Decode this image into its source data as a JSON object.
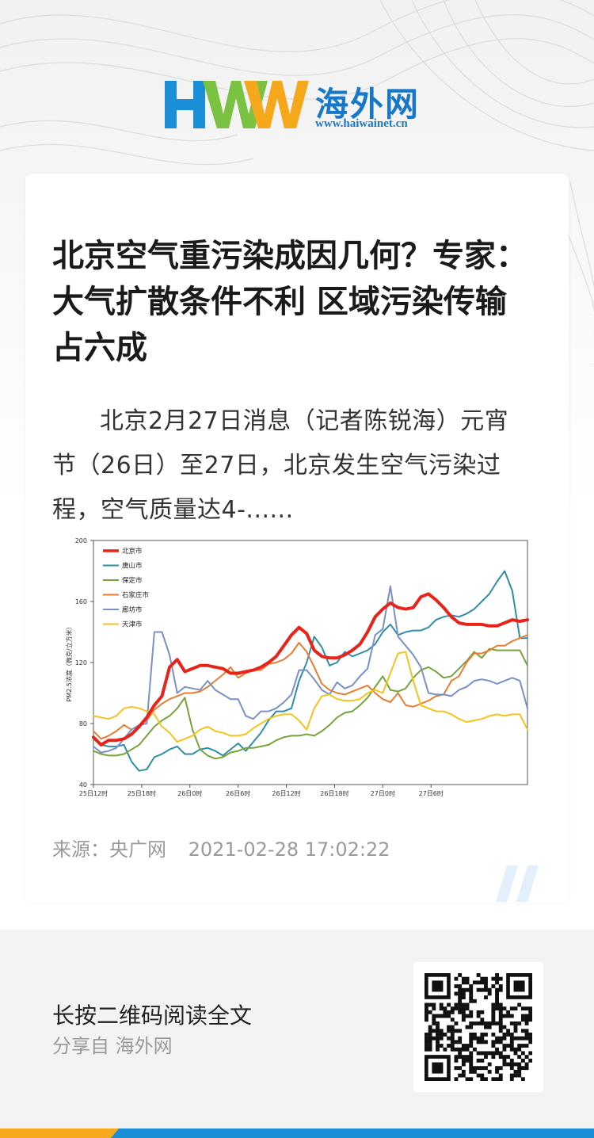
{
  "brand": {
    "logo_letters": "HWW",
    "name_cn": "海外网",
    "url": "www.haiwainet.cn",
    "colors": {
      "h": "#1a8fd8",
      "w1": "#7cc242",
      "w2": "#f5a81c",
      "cn": "#1878c8"
    }
  },
  "article": {
    "title": "北京空气重污染成因几何？专家：大气扩散条件不利 区域污染传输占六成",
    "summary": "北京2月27日消息（记者陈锐海）元宵节（26日）至27日，北京发生空气污染过程，空气质量达4-......",
    "source_label": "来源：央广网",
    "datetime": "2021-02-28 17:02:22"
  },
  "chart_data": {
    "type": "line",
    "ylabel": "PM2.5浓度（微克/立方米）",
    "ylim": [
      40,
      200
    ],
    "yticks": [
      40,
      80,
      120,
      160,
      200
    ],
    "xticks": [
      "25日12时",
      "25日18时",
      "26日0时",
      "26日6时",
      "26日12时",
      "26日18时",
      "27日0时",
      "27日6时"
    ],
    "hours_span": [
      0,
      27
    ],
    "legend_position": "top-left",
    "series": [
      {
        "name": "北京市",
        "color": "#e8231a",
        "width": 4,
        "values": [
          71,
          66,
          69,
          69,
          70,
          73,
          78,
          84,
          92,
          98,
          117,
          122,
          114,
          116,
          118,
          118,
          117,
          116,
          113,
          113,
          114,
          115,
          117,
          120,
          124,
          131,
          138,
          143,
          139,
          128,
          124,
          123,
          123,
          125,
          128,
          132,
          140,
          150,
          155,
          159,
          156,
          155,
          156,
          163,
          165,
          161,
          156,
          150,
          146,
          145,
          145,
          145,
          144,
          144,
          146,
          148,
          147,
          148
        ]
      },
      {
        "name": "唐山市",
        "color": "#2e8ea8",
        "width": 2,
        "values": [
          70,
          66,
          65,
          65,
          66,
          55,
          49,
          50,
          58,
          60,
          63,
          65,
          60,
          60,
          63,
          64,
          62,
          59,
          63,
          67,
          62,
          68,
          74,
          82,
          88,
          88,
          90,
          108,
          120,
          137,
          130,
          118,
          120,
          127,
          124,
          126,
          128,
          132,
          140,
          145,
          138,
          140,
          141,
          141,
          143,
          148,
          150,
          151,
          150,
          152,
          155,
          160,
          165,
          173,
          180,
          167,
          136,
          136
        ]
      },
      {
        "name": "保定市",
        "color": "#77a33a",
        "width": 2,
        "values": [
          62,
          60,
          59,
          59,
          60,
          63,
          66,
          72,
          78,
          82,
          85,
          90,
          97,
          76,
          63,
          59,
          57,
          58,
          61,
          62,
          64,
          64,
          65,
          66,
          69,
          71,
          72,
          72,
          73,
          72,
          75,
          79,
          84,
          87,
          88,
          92,
          97,
          104,
          111,
          102,
          101,
          103,
          110,
          115,
          117,
          114,
          110,
          111,
          116,
          121,
          127,
          123,
          129,
          128,
          128,
          128,
          128,
          118
        ]
      },
      {
        "name": "石家庄市",
        "color": "#e67d31",
        "width": 2,
        "values": [
          75,
          70,
          72,
          75,
          79,
          76,
          79,
          82,
          89,
          93,
          96,
          98,
          100,
          100,
          101,
          104,
          108,
          112,
          117,
          110,
          113,
          115,
          115,
          119,
          120,
          122,
          126,
          133,
          127,
          117,
          106,
          102,
          100,
          99,
          101,
          103,
          105,
          100,
          96,
          94,
          100,
          92,
          91,
          93,
          95,
          98,
          99,
          108,
          111,
          120,
          126,
          126,
          128,
          131,
          131,
          134,
          136,
          138
        ]
      },
      {
        "name": "廊坊市",
        "color": "#7b8fc9",
        "width": 2,
        "values": [
          65,
          61,
          62,
          64,
          70,
          76,
          79,
          80,
          140,
          140,
          125,
          100,
          104,
          103,
          102,
          108,
          102,
          99,
          96,
          96,
          85,
          83,
          88,
          88,
          90,
          94,
          99,
          115,
          115,
          109,
          102,
          99,
          107,
          103,
          105,
          111,
          116,
          138,
          142,
          170,
          137,
          131,
          125,
          117,
          100,
          99,
          99,
          98,
          102,
          104,
          108,
          109,
          108,
          106,
          108,
          110,
          108,
          90
        ]
      },
      {
        "name": "天津市",
        "color": "#f6c21d",
        "width": 2,
        "values": [
          85,
          84,
          83,
          85,
          90,
          91,
          90,
          88,
          86,
          78,
          74,
          68,
          70,
          72,
          76,
          78,
          75,
          74,
          72,
          72,
          73,
          77,
          80,
          83,
          85,
          86,
          86,
          82,
          76,
          90,
          98,
          99,
          96,
          95,
          95,
          96,
          100,
          102,
          100,
          113,
          126,
          127,
          108,
          92,
          90,
          88,
          88,
          86,
          83,
          81,
          82,
          83,
          85,
          86,
          85,
          86,
          86,
          76
        ]
      }
    ]
  },
  "footer": {
    "cta": "长按二维码阅读全文",
    "share_line": "分享自 海外网",
    "qr_icon": "qr-code-icon"
  }
}
